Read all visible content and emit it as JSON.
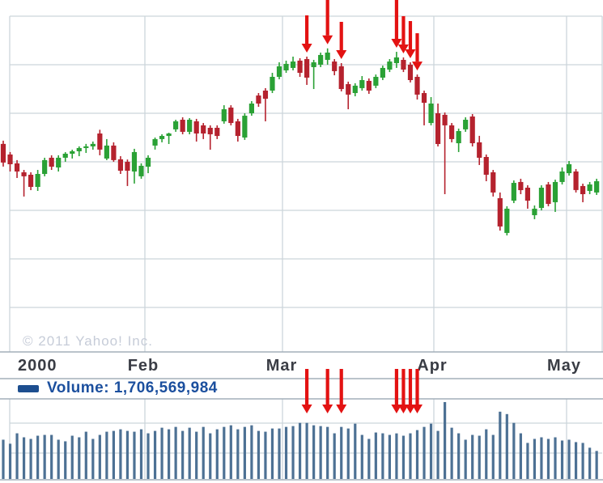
{
  "watermark_text": "© 2011 Yahoo! Inc.",
  "legend": {
    "volume_text": "Volume: 1,706,569,984",
    "swatch_color": "#1d4e8f"
  },
  "colors": {
    "up": "#2aa135",
    "down": "#b5222e",
    "volume_bar": "#4d7194",
    "arrow": "#e31212",
    "grid": "#ccd5db",
    "frame": "#a3afba",
    "month_label": "#3a3d45",
    "legend_blue": "#1b4f9e",
    "watermark": "#c6ccd8",
    "background": "#ffffff"
  },
  "chart_data": {
    "type": "candlestick+volume",
    "title": "",
    "x_labels": [
      "2000",
      "Feb",
      "Mar",
      "Apr",
      "May"
    ],
    "grid": true,
    "legend_position": "below-price-panel",
    "price_ylim": [
      2040,
      5460
    ],
    "volume_ylim_millions": [
      0,
      3000
    ],
    "watermark": "© 2011 Yahoo! Inc.",
    "legend": "Volume: 1,706,569,984",
    "columns": [
      "date",
      "open",
      "high",
      "low",
      "close",
      "volume_millions"
    ],
    "candles": [
      [
        "2000-01-03",
        4159,
        4192,
        3928,
        3969,
        1470
      ],
      [
        "2000-01-04",
        4051,
        4076,
        3878,
        3952,
        1320
      ],
      [
        "2000-01-05",
        3961,
        3994,
        3812,
        3878,
        1710
      ],
      [
        "2000-01-06",
        3870,
        3894,
        3623,
        3829,
        1560
      ],
      [
        "2000-01-07",
        3845,
        3870,
        3688,
        3721,
        1500
      ],
      [
        "2000-01-10",
        3721,
        3894,
        3680,
        3853,
        1620
      ],
      [
        "2000-01-11",
        3853,
        4018,
        3829,
        3994,
        1650
      ],
      [
        "2000-01-12",
        4018,
        4043,
        3894,
        3927,
        1650
      ],
      [
        "2000-01-13",
        3919,
        4043,
        3878,
        4018,
        1470
      ],
      [
        "2000-01-14",
        4018,
        4075,
        3977,
        4059,
        1410
      ],
      [
        "2000-01-18",
        4059,
        4100,
        4010,
        4084,
        1620
      ],
      [
        "2000-01-19",
        4084,
        4134,
        4034,
        4117,
        1560
      ],
      [
        "2000-01-20",
        4117,
        4159,
        4067,
        4134,
        1770
      ],
      [
        "2000-01-21",
        4134,
        4183,
        4100,
        4159,
        1500
      ],
      [
        "2000-01-24",
        4265,
        4303,
        4043,
        4101,
        1650
      ],
      [
        "2000-01-25",
        4010,
        4208,
        3994,
        4142,
        1770
      ],
      [
        "2000-01-26",
        4142,
        4175,
        3977,
        3994,
        1800
      ],
      [
        "2000-01-27",
        4002,
        4034,
        3853,
        3886,
        1860
      ],
      [
        "2000-01-28",
        3977,
        4000,
        3730,
        3886,
        1800
      ],
      [
        "2000-01-31",
        3878,
        4109,
        3755,
        4076,
        1770
      ],
      [
        "2000-02-01",
        3829,
        3961,
        3804,
        3936,
        1860
      ],
      [
        "2000-02-02",
        3927,
        4043,
        3861,
        4018,
        1710
      ],
      [
        "2000-02-03",
        4142,
        4224,
        4101,
        4208,
        1800
      ],
      [
        "2000-02-04",
        4208,
        4257,
        4175,
        4240,
        1920
      ],
      [
        "2000-02-07",
        4240,
        4273,
        4158,
        4265,
        1860
      ],
      [
        "2000-02-08",
        4307,
        4405,
        4282,
        4389,
        1950
      ],
      [
        "2000-02-09",
        4405,
        4430,
        4257,
        4282,
        1800
      ],
      [
        "2000-02-10",
        4282,
        4422,
        4257,
        4405,
        1920
      ],
      [
        "2000-02-11",
        4389,
        4414,
        4183,
        4265,
        1770
      ],
      [
        "2000-02-14",
        4348,
        4372,
        4208,
        4265,
        1950
      ],
      [
        "2000-02-15",
        4323,
        4348,
        4100,
        4257,
        1710
      ],
      [
        "2000-02-16",
        4323,
        4348,
        4208,
        4240,
        1860
      ],
      [
        "2000-02-17",
        4389,
        4553,
        4365,
        4512,
        1950
      ],
      [
        "2000-02-18",
        4529,
        4553,
        4348,
        4372,
        2010
      ],
      [
        "2000-02-22",
        4389,
        4414,
        4183,
        4240,
        1860
      ],
      [
        "2000-02-23",
        4224,
        4471,
        4200,
        4446,
        1950
      ],
      [
        "2000-02-24",
        4471,
        4595,
        4446,
        4570,
        2010
      ],
      [
        "2000-02-25",
        4652,
        4677,
        4537,
        4570,
        1800
      ],
      [
        "2000-02-28",
        4702,
        4727,
        4389,
        4619,
        1770
      ],
      [
        "2000-02-29",
        4702,
        4883,
        4677,
        4842,
        1890
      ],
      [
        "2000-03-01",
        4842,
        4990,
        4817,
        4949,
        1890
      ],
      [
        "2000-03-02",
        4908,
        5007,
        4883,
        4974,
        1950
      ],
      [
        "2000-03-03",
        4933,
        5048,
        4908,
        4998,
        1980
      ],
      [
        "2000-03-06",
        5007,
        5032,
        4842,
        4883,
        2100
      ],
      [
        "2000-03-07",
        5023,
        5048,
        4760,
        4834,
        2100
      ],
      [
        "2000-03-08",
        4941,
        5015,
        4718,
        4990,
        2010
      ],
      [
        "2000-03-09",
        4966,
        5089,
        4941,
        5065,
        1980
      ],
      [
        "2000-03-10",
        5015,
        5132,
        4966,
        5089,
        1950
      ],
      [
        "2000-03-13",
        4998,
        5023,
        4858,
        4900,
        1710
      ],
      [
        "2000-03-14",
        4950,
        4982,
        4694,
        4718,
        1950
      ],
      [
        "2000-03-15",
        4768,
        4793,
        4512,
        4661,
        1890
      ],
      [
        "2000-03-16",
        4677,
        4777,
        4644,
        4752,
        2070
      ],
      [
        "2000-03-17",
        4727,
        4850,
        4702,
        4809,
        1650
      ],
      [
        "2000-03-20",
        4801,
        4826,
        4669,
        4702,
        1500
      ],
      [
        "2000-03-21",
        4752,
        4866,
        4727,
        4842,
        1740
      ],
      [
        "2000-03-22",
        4834,
        4957,
        4809,
        4933,
        1710
      ],
      [
        "2000-03-23",
        4916,
        5023,
        4891,
        4998,
        1650
      ],
      [
        "2000-03-24",
        4982,
        5097,
        4933,
        5040,
        1707
      ],
      [
        "2000-03-27",
        5015,
        5040,
        4891,
        4916,
        1620
      ],
      [
        "2000-03-28",
        4966,
        4990,
        4785,
        4809,
        1710
      ],
      [
        "2000-03-29",
        4842,
        4866,
        4611,
        4661,
        1830
      ],
      [
        "2000-03-30",
        4677,
        4702,
        4348,
        4578,
        1950
      ],
      [
        "2000-03-31",
        4372,
        4636,
        4348,
        4570,
        2070
      ],
      [
        "2000-04-03",
        4471,
        4570,
        4133,
        4158,
        1800
      ],
      [
        "2000-04-04",
        4455,
        4479,
        3647,
        4348,
        2880
      ],
      [
        "2000-04-05",
        4348,
        4372,
        4175,
        4208,
        1920
      ],
      [
        "2000-04-06",
        4166,
        4315,
        4076,
        4290,
        1710
      ],
      [
        "2000-04-07",
        4307,
        4430,
        4282,
        4405,
        1470
      ],
      [
        "2000-04-10",
        4438,
        4463,
        4133,
        4166,
        1650
      ],
      [
        "2000-04-11",
        4175,
        4241,
        3944,
        4018,
        1620
      ],
      [
        "2000-04-12",
        4026,
        4051,
        3779,
        3845,
        1860
      ],
      [
        "2000-04-13",
        3870,
        3894,
        3623,
        3664,
        1650
      ],
      [
        "2000-04-14",
        3606,
        3664,
        3276,
        3318,
        2520
      ],
      [
        "2000-04-17",
        3252,
        3524,
        3227,
        3499,
        2430
      ],
      [
        "2000-04-18",
        3581,
        3787,
        3556,
        3762,
        2100
      ],
      [
        "2000-04-19",
        3771,
        3804,
        3647,
        3688,
        1710
      ],
      [
        "2000-04-20",
        3713,
        3738,
        3499,
        3581,
        1350
      ],
      [
        "2000-04-24",
        3433,
        3532,
        3392,
        3499,
        1500
      ],
      [
        "2000-04-25",
        3507,
        3738,
        3482,
        3713,
        1560
      ],
      [
        "2000-04-26",
        3746,
        3771,
        3524,
        3548,
        1500
      ],
      [
        "2000-04-27",
        3565,
        3795,
        3466,
        3771,
        1560
      ],
      [
        "2000-04-28",
        3771,
        3919,
        3746,
        3878,
        1440
      ],
      [
        "2000-05-01",
        3861,
        3985,
        3836,
        3952,
        1470
      ],
      [
        "2000-05-02",
        3878,
        3903,
        3664,
        3689,
        1380
      ],
      [
        "2000-05-03",
        3730,
        3754,
        3565,
        3647,
        1350
      ],
      [
        "2000-05-04",
        3680,
        3771,
        3647,
        3746,
        1170
      ],
      [
        "2000-05-05",
        3664,
        3804,
        3639,
        3779,
        1050
      ]
    ],
    "annotations": {
      "down_arrow_days": [
        "2000-03-07",
        "2000-03-10",
        "2000-03-14",
        "2000-03-24",
        "2000-03-27",
        "2000-03-28",
        "2000-03-29"
      ],
      "long_arrow_days": [
        "2000-03-10",
        "2000-03-24"
      ],
      "arrows_repeat_on_volume_panel": true
    }
  }
}
